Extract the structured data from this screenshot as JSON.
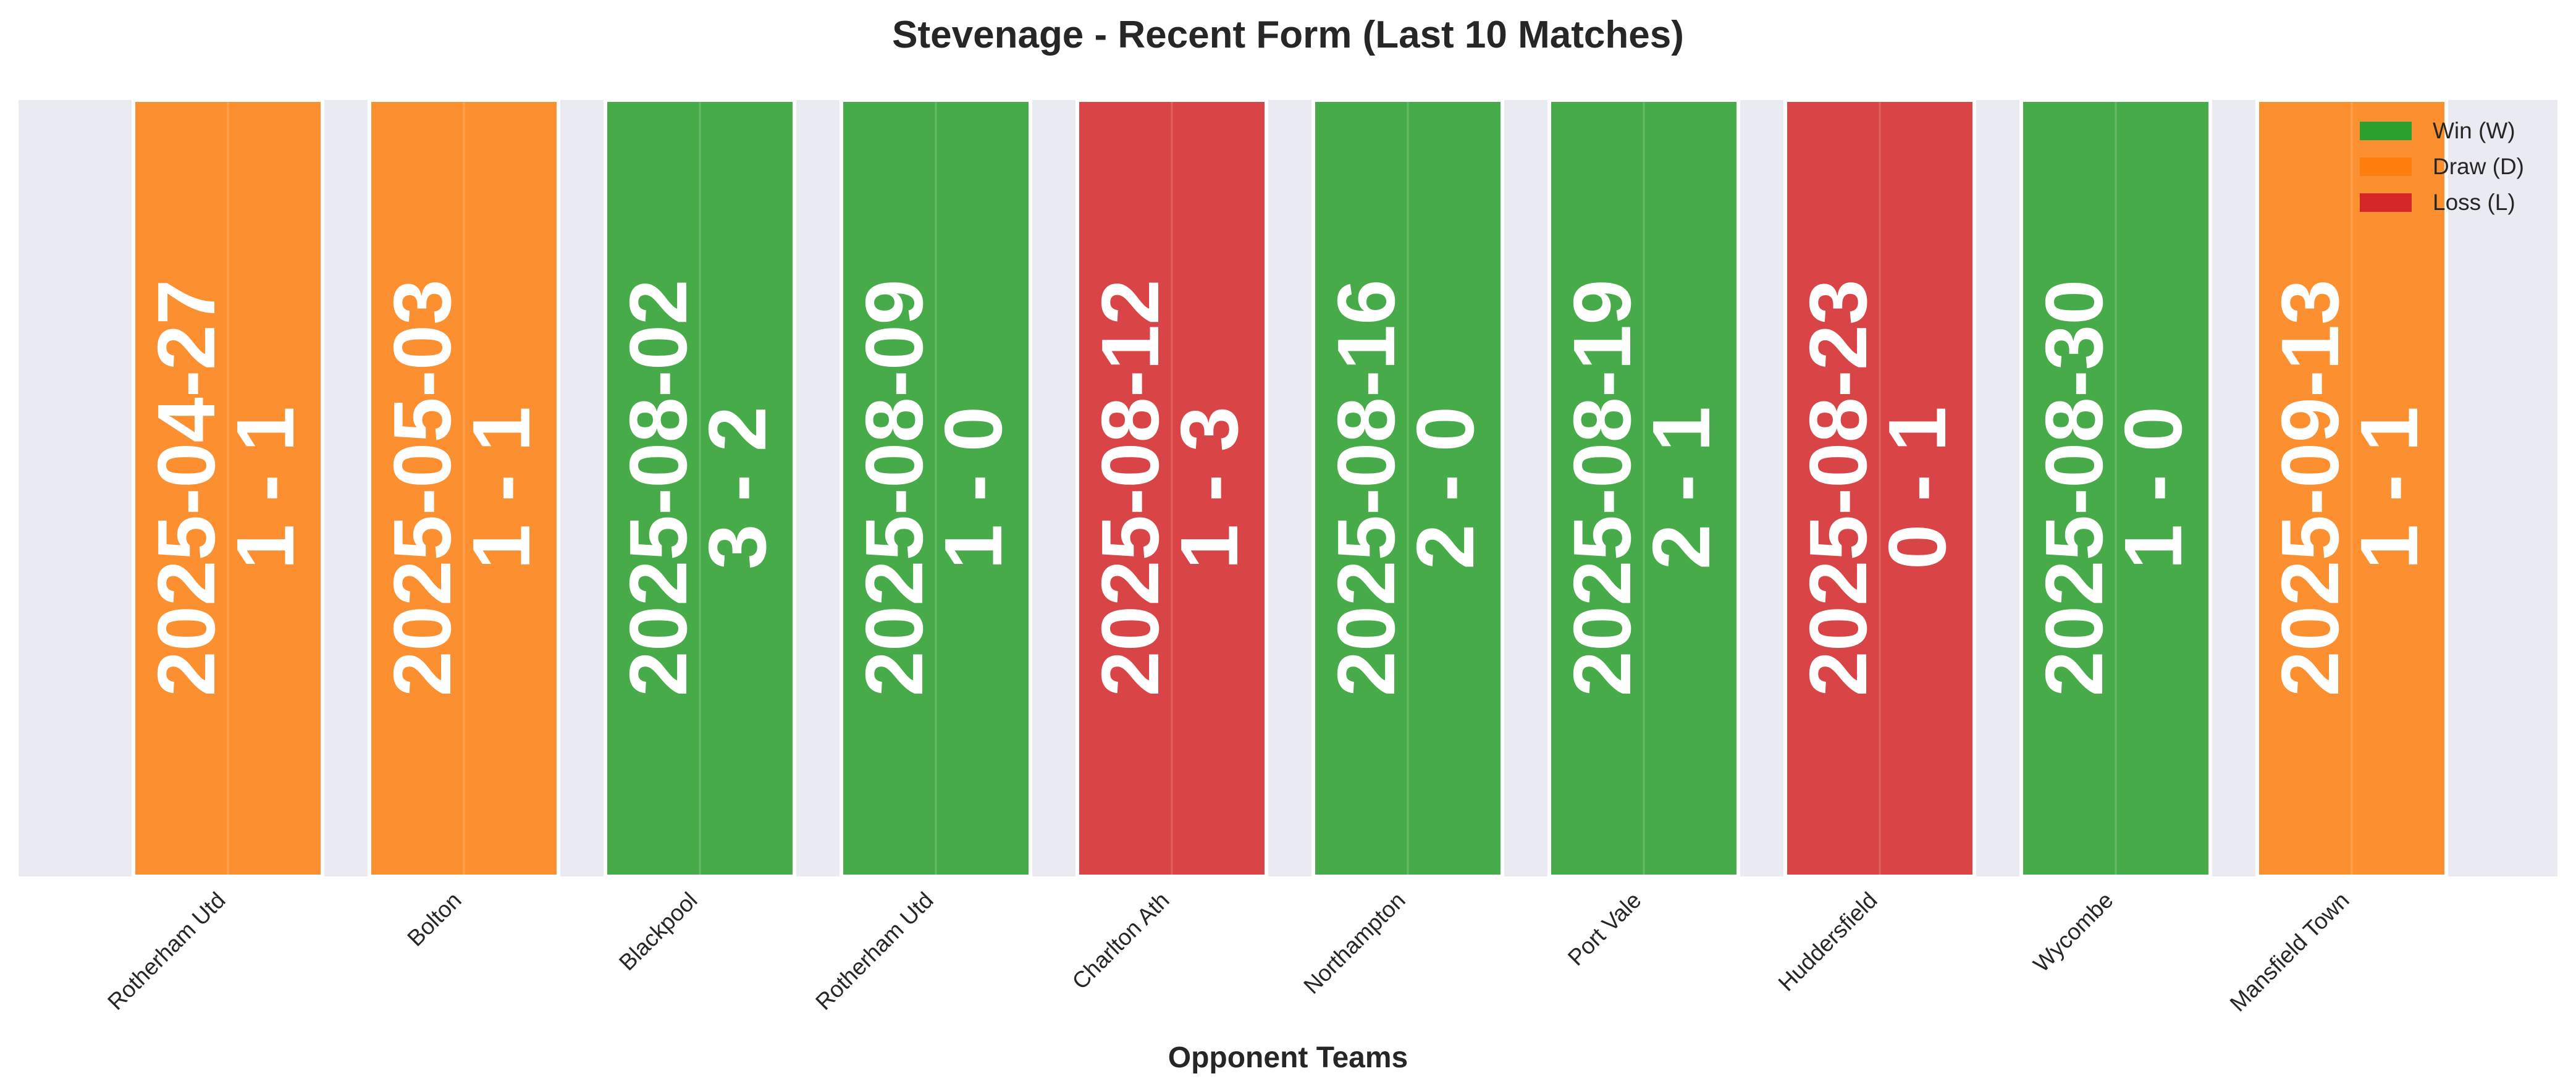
{
  "chart_data": {
    "type": "bar",
    "title": "Stevenage - Recent Form (Last 10 Matches)",
    "xlabel": "Opponent Teams",
    "ylabel": "",
    "grid": true,
    "legend_position": "top-right",
    "categories": [
      "Rotherham Utd",
      "Bolton",
      "Blackpool",
      "Rotherham Utd",
      "Charlton Ath",
      "Northampton",
      "Port Vale",
      "Huddersfield",
      "Wycombe",
      "Mansfield Town"
    ],
    "dates": [
      "2025-04-27",
      "2025-05-03",
      "2025-08-02",
      "2025-08-09",
      "2025-08-12",
      "2025-08-16",
      "2025-08-19",
      "2025-08-23",
      "2025-08-30",
      "2025-09-13"
    ],
    "scores": [
      "1 - 1",
      "1 - 1",
      "3 - 2",
      "1 - 0",
      "1 - 3",
      "2 - 0",
      "2 - 1",
      "0 - 1",
      "1 - 0",
      "1 - 1"
    ],
    "results": [
      "D",
      "D",
      "W",
      "W",
      "L",
      "W",
      "W",
      "L",
      "W",
      "D"
    ],
    "values": [
      1,
      1,
      1,
      1,
      1,
      1,
      1,
      1,
      1,
      1
    ],
    "legend": [
      {
        "key": "W",
        "label": "Win (W)",
        "color": "#2ca02c"
      },
      {
        "key": "D",
        "label": "Draw (D)",
        "color": "#ff7f0e"
      },
      {
        "key": "L",
        "label": "Loss (L)",
        "color": "#d62728"
      }
    ],
    "colors": {
      "W": "#2ca02c",
      "D": "#ff7f0e",
      "L": "#d62728",
      "plot_background": "#eaeaf2"
    }
  }
}
